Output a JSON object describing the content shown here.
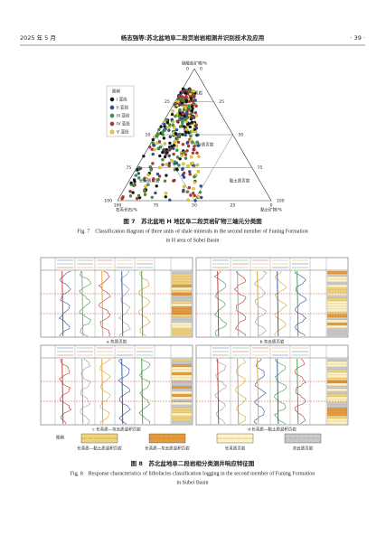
{
  "header": {
    "date": "2025 年 5 月",
    "running_title": "杨志强等:苏北盆地阜二段页岩岩相测井识别技术及应用",
    "page": "· 39 ·"
  },
  "figure7": {
    "axis_top": "碳酸盐矿物/%",
    "axis_left": "石英长石/%",
    "axis_right": "黏土矿物/%",
    "ticks": [
      0,
      25,
      50,
      75,
      100
    ],
    "legend_title": "图例",
    "legend": [
      {
        "label": "I 亚段",
        "color": "#111111"
      },
      {
        "label": "II 亚段",
        "color": "#2a4fa0"
      },
      {
        "label": "III 亚段",
        "color": "#3a9a3a"
      },
      {
        "label": "IV 亚段",
        "color": "#c0302a"
      },
      {
        "label": "V 亚段",
        "color": "#e8d22a"
      }
    ],
    "regions": [
      "灰质页岩",
      "混合质页岩",
      "长英质页岩",
      "黏土质页岩"
    ],
    "caption_cn": "图 7　苏北盆地 H 地区阜二段页岩矿物三端元分类图",
    "caption_en": [
      "Fig. 7　Classification diagram of three units of shale minerals in the second member of Funing Formation",
      "in H area of Subei Basin"
    ]
  },
  "figure8": {
    "panels": [
      "a 灰质页岩",
      "b 灰云质页岩",
      "c 长英质—灰云质混积页岩",
      "d 长英质—黏土质混积页岩"
    ],
    "legend_title": "图例",
    "legend": [
      "长英质—黏土质混积页岩",
      "长英质—灰云质混积页岩",
      "长英质页岩",
      "灰云质页岩"
    ],
    "caption_cn": "图 8　苏北盆地阜二段岩相分类测井响应特征图",
    "caption_en": [
      "Fig. 8　Response characteristics of lithofacies classification logging in the second member of Funing Formation",
      "in Subei Basin"
    ]
  }
}
